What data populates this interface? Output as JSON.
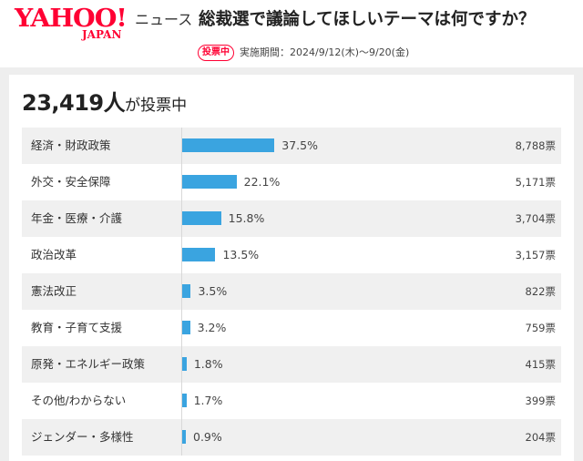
{
  "header": {
    "logo_main": "YAHOO!",
    "logo_sub": "JAPAN",
    "logo_news": "ニュース",
    "title": "総裁選で議論してほしいテーマは何ですか？",
    "status_badge": "投票中",
    "period": "実施期間：2024/9/12(木)〜9/20(金)"
  },
  "summary": {
    "total_votes": "23,419",
    "total_unit": "人",
    "total_suffix": "が投票中"
  },
  "colors": {
    "brand": "#ff0033",
    "bar": "#3aa4e0"
  },
  "chart_data": {
    "type": "bar",
    "orientation": "horizontal",
    "categories": [
      "経済・財政政策",
      "外交・安全保障",
      "年金・医療・介護",
      "政治改革",
      "憲法改正",
      "教育・子育て支援",
      "原発・エネルギー政策",
      "その他/わからない",
      "ジェンダー・多様性"
    ],
    "values": [
      37.5,
      22.1,
      15.8,
      13.5,
      3.5,
      3.2,
      1.8,
      1.7,
      0.9
    ],
    "value_labels": [
      "37.5%",
      "22.1%",
      "15.8%",
      "13.5%",
      "3.5%",
      "3.2%",
      "1.8%",
      "1.7%",
      "0.9%"
    ],
    "votes": [
      "8,788票",
      "5,171票",
      "3,704票",
      "3,157票",
      "822票",
      "759票",
      "415票",
      "399票",
      "204票"
    ],
    "xlim": [
      0,
      100
    ]
  }
}
